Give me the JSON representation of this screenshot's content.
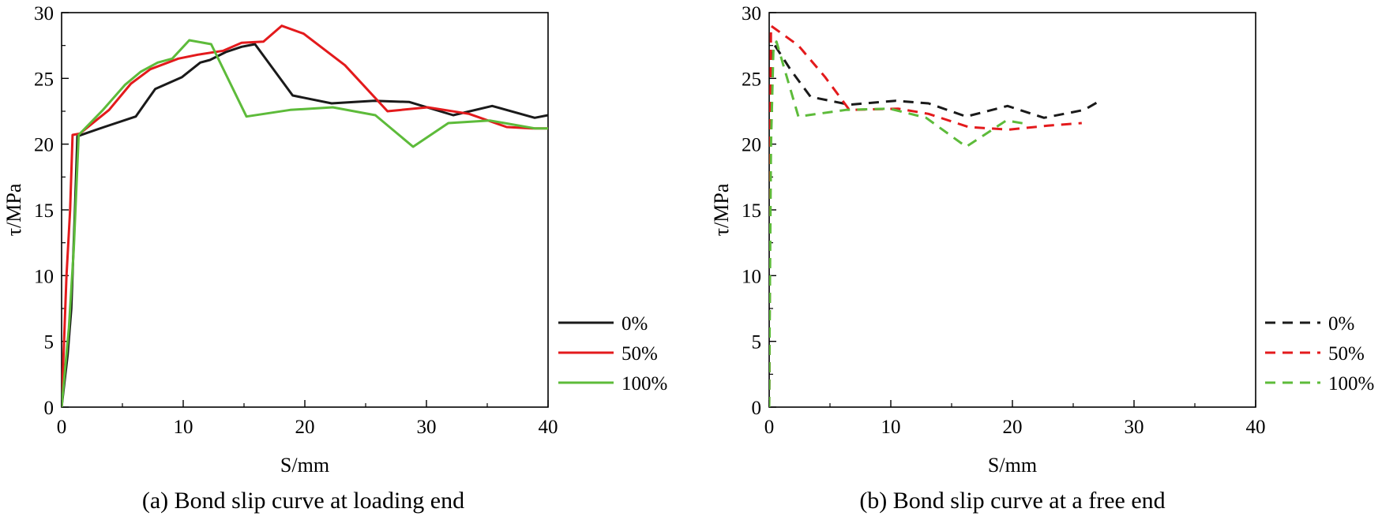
{
  "chart_data": [
    {
      "type": "line",
      "caption": "(a) Bond slip curve at loading end",
      "xlabel": "S/mm",
      "ylabel": "τ/MPa",
      "xlim": [
        0,
        40
      ],
      "ylim": [
        0,
        30
      ],
      "xticks": [
        "0",
        "10",
        "20",
        "30",
        "40"
      ],
      "yticks": [
        "0",
        "5",
        "10",
        "15",
        "20",
        "25",
        "30"
      ],
      "legend_position": "outside-right",
      "series": [
        {
          "name": "0%",
          "color": "#1a1a1a",
          "dash": "solid",
          "points": [
            [
              0,
              0
            ],
            [
              0.5,
              4
            ],
            [
              0.8,
              7.5
            ],
            [
              1.1,
              15
            ],
            [
              1.3,
              20.6
            ],
            [
              3.5,
              21.3
            ],
            [
              6.1,
              22.1
            ],
            [
              7.7,
              24.2
            ],
            [
              9.9,
              25.1
            ],
            [
              11.4,
              26.2
            ],
            [
              12.2,
              26.4
            ],
            [
              13.5,
              27
            ],
            [
              14.8,
              27.4
            ],
            [
              15.9,
              27.6
            ],
            [
              19,
              23.7
            ],
            [
              22.2,
              23.1
            ],
            [
              25.7,
              23.3
            ],
            [
              28.6,
              23.2
            ],
            [
              32.2,
              22.2
            ],
            [
              35.4,
              22.9
            ],
            [
              38.9,
              22
            ],
            [
              40,
              22.2
            ]
          ]
        },
        {
          "name": "50%",
          "color": "#e31a1c",
          "dash": "solid",
          "points": [
            [
              0,
              0
            ],
            [
              0.4,
              10
            ],
            [
              0.7,
              15
            ],
            [
              0.9,
              20.7
            ],
            [
              1.5,
              20.8
            ],
            [
              3.9,
              22.6
            ],
            [
              5.7,
              24.6
            ],
            [
              7.3,
              25.7
            ],
            [
              9.6,
              26.5
            ],
            [
              11.2,
              26.8
            ],
            [
              13.3,
              27.1
            ],
            [
              14.8,
              27.7
            ],
            [
              16.6,
              27.8
            ],
            [
              18.1,
              29
            ],
            [
              19.9,
              28.4
            ],
            [
              23.3,
              26
            ],
            [
              26.8,
              22.5
            ],
            [
              30.1,
              22.8
            ],
            [
              33.5,
              22.3
            ],
            [
              36.6,
              21.3
            ],
            [
              38.7,
              21.2
            ],
            [
              40,
              21.2
            ]
          ]
        },
        {
          "name": "100%",
          "color": "#5dbb3a",
          "dash": "solid",
          "points": [
            [
              0,
              0
            ],
            [
              0.6,
              6
            ],
            [
              1,
              12
            ],
            [
              1.4,
              20.7
            ],
            [
              3.4,
              22.6
            ],
            [
              5.2,
              24.5
            ],
            [
              6.5,
              25.5
            ],
            [
              7.9,
              26.2
            ],
            [
              9.1,
              26.5
            ],
            [
              10.5,
              27.9
            ],
            [
              12.3,
              27.6
            ],
            [
              15.2,
              22.1
            ],
            [
              18.8,
              22.6
            ],
            [
              22.3,
              22.8
            ],
            [
              25.8,
              22.2
            ],
            [
              28.9,
              19.8
            ],
            [
              31.8,
              21.6
            ],
            [
              35.2,
              21.8
            ],
            [
              38.9,
              21.2
            ],
            [
              40,
              21.2
            ]
          ]
        }
      ]
    },
    {
      "type": "line",
      "caption": "(b) Bond slip curve at a free end",
      "xlabel": "S/mm",
      "ylabel": "τ/MPa",
      "xlim": [
        0,
        40
      ],
      "ylim": [
        0,
        30
      ],
      "xticks": [
        "0",
        "10",
        "20",
        "30",
        "40"
      ],
      "yticks": [
        "0",
        "5",
        "10",
        "15",
        "20",
        "25",
        "30"
      ],
      "legend_position": "outside-right",
      "series": [
        {
          "name": "0%",
          "color": "#1a1a1a",
          "dash": "dashed",
          "points": [
            [
              0,
              0
            ],
            [
              0.05,
              10
            ],
            [
              0.1,
              20
            ],
            [
              0.2,
              26
            ],
            [
              0.4,
              27.6
            ],
            [
              1.8,
              25.6
            ],
            [
              3.4,
              23.6
            ],
            [
              6.6,
              23
            ],
            [
              10.4,
              23.3
            ],
            [
              13.1,
              23.1
            ],
            [
              16.2,
              22.1
            ],
            [
              19.6,
              22.9
            ],
            [
              22.6,
              22
            ],
            [
              25.9,
              22.6
            ],
            [
              27.2,
              23.3
            ]
          ]
        },
        {
          "name": "50%",
          "color": "#e31a1c",
          "dash": "dashed",
          "points": [
            [
              0,
              0
            ],
            [
              0.05,
              10
            ],
            [
              0.1,
              22
            ],
            [
              0.15,
              29
            ],
            [
              2.4,
              27.5
            ],
            [
              4.6,
              25.1
            ],
            [
              6.6,
              22.6
            ],
            [
              10.6,
              22.7
            ],
            [
              13.1,
              22.3
            ],
            [
              16.4,
              21.3
            ],
            [
              19.7,
              21.1
            ],
            [
              22.9,
              21.4
            ],
            [
              25.7,
              21.6
            ]
          ]
        },
        {
          "name": "100%",
          "color": "#5dbb3a",
          "dash": "dashed",
          "points": [
            [
              0,
              0
            ],
            [
              0.05,
              8
            ],
            [
              0.15,
              20
            ],
            [
              0.35,
              27.3
            ],
            [
              0.6,
              27.8
            ],
            [
              2.4,
              22.1
            ],
            [
              6.3,
              22.6
            ],
            [
              9.9,
              22.7
            ],
            [
              12.9,
              22
            ],
            [
              16.2,
              19.8
            ],
            [
              19.5,
              21.8
            ],
            [
              21.4,
              21.5
            ]
          ]
        }
      ]
    }
  ]
}
